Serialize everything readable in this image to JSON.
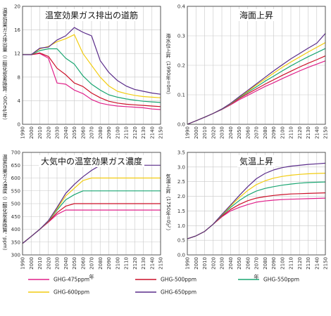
{
  "legend": {
    "entries": [
      {
        "name": "GHG-475ppm",
        "color": "#e0208a"
      },
      {
        "name": "GHG-500ppm",
        "color": "#cc1028"
      },
      {
        "name": "GHG-550ppm",
        "color": "#1aa672"
      },
      {
        "name": "GHG-600ppm",
        "color": "#f2cc10"
      },
      {
        "name": "GHG-650ppm",
        "color": "#5a2c8a"
      }
    ]
  },
  "chart_data": [
    {
      "type": "line",
      "title": "温室効果ガス排出の道筋",
      "xlabel": "",
      "ylabel": "温室効果ガス排出量（二酸化炭素換算：GtCeq/年）",
      "xlim": [
        1990,
        2150
      ],
      "ylim": [
        0,
        20
      ],
      "xticks": [
        1990,
        2000,
        2010,
        2020,
        2030,
        2040,
        2050,
        2060,
        2070,
        2080,
        2090,
        2100,
        2110,
        2120,
        2130,
        2140,
        2150
      ],
      "yticks": [
        0,
        4,
        8,
        12,
        16,
        20
      ],
      "x": [
        1990,
        2000,
        2010,
        2020,
        2030,
        2040,
        2050,
        2060,
        2070,
        2080,
        2090,
        2100,
        2110,
        2120,
        2130,
        2140,
        2150
      ],
      "series": [
        {
          "name": "GHG-475ppm",
          "values": [
            11.8,
            11.8,
            12.0,
            11.2,
            7.0,
            6.8,
            5.8,
            5.2,
            4.2,
            3.6,
            3.3,
            3.1,
            3.0,
            2.9,
            2.8,
            2.6,
            2.5
          ]
        },
        {
          "name": "GHG-500ppm",
          "values": [
            11.8,
            11.8,
            12.1,
            11.5,
            9.5,
            8.4,
            7.0,
            6.4,
            5.3,
            4.5,
            3.9,
            3.6,
            3.4,
            3.3,
            3.2,
            3.1,
            3.0
          ]
        },
        {
          "name": "GHG-550ppm",
          "values": [
            11.8,
            11.8,
            12.5,
            12.8,
            12.8,
            11.2,
            10.2,
            8.2,
            6.8,
            5.8,
            5.0,
            4.6,
            4.3,
            4.1,
            3.9,
            3.8,
            3.7
          ]
        },
        {
          "name": "GHG-600ppm",
          "values": [
            11.8,
            11.8,
            12.8,
            13.2,
            14.0,
            14.5,
            15.2,
            12.0,
            10.0,
            8.0,
            6.5,
            5.6,
            5.2,
            4.9,
            4.7,
            4.6,
            4.5
          ]
        },
        {
          "name": "GHG-650ppm",
          "values": [
            11.8,
            11.8,
            12.9,
            13.1,
            14.3,
            15.0,
            16.4,
            15.6,
            15.0,
            10.8,
            8.8,
            7.4,
            6.5,
            5.9,
            5.6,
            5.3,
            5.1
          ]
        }
      ]
    },
    {
      "type": "line",
      "title": "海面上昇",
      "xlabel": "",
      "ylabel": "海水位上昇（1990年=0m）",
      "xlim": [
        1990,
        2150
      ],
      "ylim": [
        0,
        0.4
      ],
      "xticks": [
        1990,
        2000,
        2010,
        2020,
        2030,
        2040,
        2050,
        2060,
        2070,
        2080,
        2090,
        2100,
        2110,
        2120,
        2130,
        2140,
        2150
      ],
      "yticks": [
        0,
        0.1,
        0.2,
        0.3,
        0.4
      ],
      "x": [
        1990,
        2000,
        2010,
        2020,
        2030,
        2040,
        2050,
        2060,
        2070,
        2080,
        2090,
        2100,
        2110,
        2120,
        2130,
        2140,
        2150
      ],
      "series": [
        {
          "name": "GHG-475ppm",
          "values": [
            0,
            0.012,
            0.024,
            0.037,
            0.05,
            0.066,
            0.083,
            0.098,
            0.113,
            0.128,
            0.141,
            0.155,
            0.168,
            0.181,
            0.193,
            0.204,
            0.215
          ]
        },
        {
          "name": "GHG-500ppm",
          "values": [
            0,
            0.012,
            0.024,
            0.037,
            0.051,
            0.068,
            0.087,
            0.104,
            0.12,
            0.136,
            0.151,
            0.166,
            0.18,
            0.194,
            0.207,
            0.219,
            0.232
          ]
        },
        {
          "name": "GHG-550ppm",
          "values": [
            0,
            0.012,
            0.024,
            0.037,
            0.051,
            0.069,
            0.09,
            0.109,
            0.127,
            0.146,
            0.163,
            0.181,
            0.198,
            0.214,
            0.229,
            0.243,
            0.257
          ]
        },
        {
          "name": "GHG-600ppm",
          "values": [
            0,
            0.012,
            0.024,
            0.037,
            0.052,
            0.07,
            0.092,
            0.112,
            0.133,
            0.153,
            0.173,
            0.193,
            0.211,
            0.228,
            0.245,
            0.261,
            0.277
          ]
        },
        {
          "name": "GHG-650ppm",
          "values": [
            0,
            0.012,
            0.024,
            0.037,
            0.052,
            0.071,
            0.093,
            0.115,
            0.137,
            0.159,
            0.181,
            0.202,
            0.222,
            0.24,
            0.258,
            0.275,
            0.308
          ]
        }
      ]
    },
    {
      "type": "line",
      "title": "大気中の温室効果ガス濃度",
      "xlabel": "年",
      "ylabel": "温室効果ガス濃度（二酸化炭素換算：ppm）",
      "xlim": [
        1990,
        2150
      ],
      "ylim": [
        300,
        700
      ],
      "xticks": [
        1990,
        2000,
        2010,
        2020,
        2030,
        2040,
        2050,
        2060,
        2070,
        2080,
        2090,
        2100,
        2110,
        2120,
        2130,
        2140,
        2150
      ],
      "yticks": [
        300,
        350,
        400,
        450,
        500,
        550,
        600,
        650,
        700
      ],
      "x": [
        1990,
        2000,
        2010,
        2020,
        2030,
        2040,
        2050,
        2060,
        2070,
        2080,
        2090,
        2100,
        2110,
        2120,
        2130,
        2140,
        2150
      ],
      "series": [
        {
          "name": "GHG-475ppm",
          "values": [
            345,
            372,
            400,
            428,
            458,
            475,
            475,
            475,
            475,
            475,
            475,
            475,
            475,
            475,
            475,
            475,
            475
          ]
        },
        {
          "name": "GHG-500ppm",
          "values": [
            345,
            372,
            400,
            430,
            465,
            490,
            500,
            500,
            500,
            500,
            500,
            500,
            500,
            500,
            500,
            500,
            500
          ]
        },
        {
          "name": "GHG-550ppm",
          "values": [
            345,
            372,
            400,
            432,
            475,
            515,
            535,
            550,
            550,
            550,
            550,
            550,
            550,
            550,
            550,
            550,
            550
          ]
        },
        {
          "name": "GHG-600ppm",
          "values": [
            345,
            372,
            400,
            433,
            480,
            530,
            560,
            590,
            600,
            600,
            600,
            600,
            600,
            600,
            600,
            600,
            600
          ]
        },
        {
          "name": "GHG-650ppm",
          "values": [
            345,
            372,
            400,
            434,
            485,
            540,
            575,
            605,
            630,
            650,
            650,
            650,
            650,
            650,
            650,
            650,
            650
          ]
        }
      ]
    },
    {
      "type": "line",
      "title": "気温上昇",
      "xlabel": "年",
      "ylabel": "気温上昇（1750年=0℃）",
      "xlim": [
        1990,
        2150
      ],
      "ylim": [
        0,
        3.5
      ],
      "xticks": [
        1990,
        2000,
        2010,
        2020,
        2030,
        2040,
        2050,
        2060,
        2070,
        2080,
        2090,
        2100,
        2110,
        2120,
        2130,
        2140,
        2150
      ],
      "yticks": [
        0,
        0.5,
        1.0,
        1.5,
        2.0,
        2.5,
        3.0,
        3.5
      ],
      "x": [
        1990,
        2000,
        2010,
        2020,
        2030,
        2040,
        2050,
        2060,
        2070,
        2080,
        2090,
        2100,
        2110,
        2120,
        2130,
        2140,
        2150
      ],
      "series": [
        {
          "name": "GHG-475ppm",
          "values": [
            0.55,
            0.65,
            0.8,
            1.05,
            1.3,
            1.5,
            1.62,
            1.72,
            1.8,
            1.84,
            1.87,
            1.89,
            1.9,
            1.91,
            1.92,
            1.93,
            1.94
          ]
        },
        {
          "name": "GHG-500ppm",
          "values": [
            0.55,
            0.65,
            0.8,
            1.05,
            1.32,
            1.55,
            1.72,
            1.85,
            1.94,
            1.99,
            2.03,
            2.06,
            2.08,
            2.09,
            2.1,
            2.11,
            2.12
          ]
        },
        {
          "name": "GHG-550ppm",
          "values": [
            0.55,
            0.65,
            0.8,
            1.05,
            1.35,
            1.62,
            1.85,
            2.04,
            2.18,
            2.27,
            2.33,
            2.38,
            2.42,
            2.45,
            2.47,
            2.48,
            2.49
          ]
        },
        {
          "name": "GHG-600ppm",
          "values": [
            0.55,
            0.65,
            0.8,
            1.05,
            1.37,
            1.67,
            1.95,
            2.2,
            2.4,
            2.53,
            2.62,
            2.68,
            2.72,
            2.75,
            2.77,
            2.78,
            2.79
          ]
        },
        {
          "name": "GHG-650ppm",
          "values": [
            0.55,
            0.65,
            0.8,
            1.05,
            1.38,
            1.7,
            2.02,
            2.33,
            2.6,
            2.78,
            2.9,
            2.98,
            3.03,
            3.06,
            3.09,
            3.11,
            3.13
          ]
        }
      ]
    }
  ]
}
